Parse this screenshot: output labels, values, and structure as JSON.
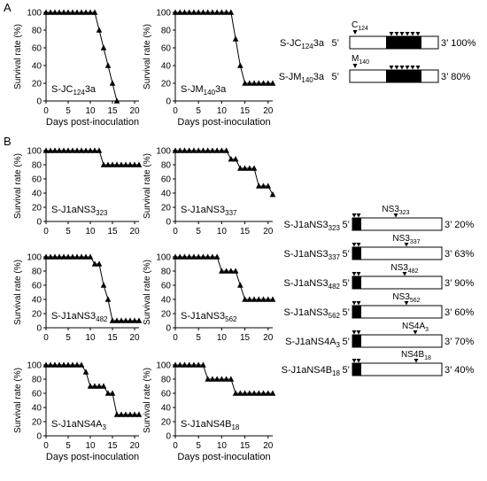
{
  "panel_labels": {
    "a": "A",
    "b": "B"
  },
  "axis": {
    "ylabel": "Survival rate (%)",
    "xlabel": "Days post-inoculation",
    "xticks": [
      "0",
      "5",
      "10",
      "15",
      "20"
    ],
    "yticks": [
      "0",
      "20",
      "40",
      "60",
      "80",
      "100"
    ]
  },
  "chart_data": [
    {
      "type": "line",
      "marker": "triangle",
      "xlim": [
        0,
        21
      ],
      "ylim": [
        0,
        100
      ],
      "label": {
        "base": "S-JC",
        "sub": "124",
        "suffix": "3a"
      },
      "x": [
        0,
        1,
        2,
        3,
        4,
        5,
        6,
        7,
        8,
        9,
        10,
        11,
        12,
        13,
        14,
        15,
        16
      ],
      "y": [
        100,
        100,
        100,
        100,
        100,
        100,
        100,
        100,
        100,
        100,
        100,
        100,
        80,
        60,
        40,
        20,
        0
      ]
    },
    {
      "type": "line",
      "marker": "triangle",
      "xlim": [
        0,
        21
      ],
      "ylim": [
        0,
        100
      ],
      "label": {
        "base": "S-JM",
        "sub": "140",
        "suffix": "3a"
      },
      "x": [
        0,
        1,
        2,
        3,
        4,
        5,
        6,
        7,
        8,
        9,
        10,
        11,
        12,
        13,
        14,
        15,
        16,
        17,
        18,
        19,
        20,
        21
      ],
      "y": [
        100,
        100,
        100,
        100,
        100,
        100,
        100,
        100,
        100,
        100,
        100,
        100,
        100,
        70,
        40,
        20,
        20,
        20,
        20,
        20,
        20,
        20
      ]
    },
    {
      "type": "line",
      "marker": "triangle",
      "xlim": [
        0,
        21
      ],
      "ylim": [
        0,
        100
      ],
      "label": {
        "base": "S-J1aNS3",
        "sub": "323",
        "suffix": ""
      },
      "x": [
        0,
        1,
        2,
        3,
        4,
        5,
        6,
        7,
        8,
        9,
        10,
        11,
        12,
        13,
        14,
        15,
        16,
        17,
        18,
        19,
        20,
        21
      ],
      "y": [
        100,
        100,
        100,
        100,
        100,
        100,
        100,
        100,
        100,
        100,
        100,
        100,
        100,
        80,
        80,
        80,
        80,
        80,
        80,
        80,
        80,
        80
      ]
    },
    {
      "type": "line",
      "marker": "triangle",
      "xlim": [
        0,
        21
      ],
      "ylim": [
        0,
        100
      ],
      "label": {
        "base": "S-J1aNS3",
        "sub": "337",
        "suffix": ""
      },
      "x": [
        0,
        1,
        2,
        3,
        4,
        5,
        6,
        7,
        8,
        9,
        10,
        11,
        12,
        13,
        14,
        15,
        16,
        17,
        18,
        19,
        20,
        21
      ],
      "y": [
        100,
        100,
        100,
        100,
        100,
        100,
        100,
        100,
        100,
        100,
        100,
        100,
        88,
        88,
        75,
        75,
        75,
        75,
        50,
        50,
        50,
        38
      ]
    },
    {
      "type": "line",
      "marker": "triangle",
      "xlim": [
        0,
        21
      ],
      "ylim": [
        0,
        100
      ],
      "label": {
        "base": "S-J1aNS3",
        "sub": "482",
        "suffix": ""
      },
      "x": [
        0,
        1,
        2,
        3,
        4,
        5,
        6,
        7,
        8,
        9,
        10,
        11,
        12,
        13,
        14,
        15,
        16,
        17,
        18,
        19,
        20,
        21
      ],
      "y": [
        100,
        100,
        100,
        100,
        100,
        100,
        100,
        100,
        100,
        100,
        100,
        90,
        90,
        60,
        40,
        10,
        10,
        10,
        10,
        10,
        10,
        10
      ]
    },
    {
      "type": "line",
      "marker": "triangle",
      "xlim": [
        0,
        21
      ],
      "ylim": [
        0,
        100
      ],
      "label": {
        "base": "S-J1aNS3",
        "sub": "562",
        "suffix": ""
      },
      "x": [
        0,
        1,
        2,
        3,
        4,
        5,
        6,
        7,
        8,
        9,
        10,
        11,
        12,
        13,
        14,
        15,
        16,
        17,
        18,
        19,
        20,
        21
      ],
      "y": [
        100,
        100,
        100,
        100,
        100,
        100,
        100,
        100,
        100,
        100,
        80,
        80,
        80,
        80,
        60,
        40,
        40,
        40,
        40,
        40,
        40,
        40
      ]
    },
    {
      "type": "line",
      "marker": "triangle",
      "xlim": [
        0,
        21
      ],
      "ylim": [
        0,
        100
      ],
      "label": {
        "base": "S-J1aNS4A",
        "sub": "3",
        "suffix": ""
      },
      "x": [
        0,
        1,
        2,
        3,
        4,
        5,
        6,
        7,
        8,
        9,
        10,
        11,
        12,
        13,
        14,
        15,
        16,
        17,
        18,
        19,
        20,
        21
      ],
      "y": [
        100,
        100,
        100,
        100,
        100,
        100,
        100,
        100,
        100,
        90,
        70,
        70,
        70,
        70,
        60,
        60,
        30,
        30,
        30,
        30,
        30,
        30
      ]
    },
    {
      "type": "line",
      "marker": "triangle",
      "xlim": [
        0,
        21
      ],
      "ylim": [
        0,
        100
      ],
      "label": {
        "base": "S-J1aNS4B",
        "sub": "18",
        "suffix": ""
      },
      "x": [
        0,
        1,
        2,
        3,
        4,
        5,
        6,
        7,
        8,
        9,
        10,
        11,
        12,
        13,
        14,
        15,
        16,
        17,
        18,
        19,
        20,
        21
      ],
      "y": [
        100,
        100,
        100,
        100,
        100,
        100,
        100,
        80,
        80,
        80,
        80,
        80,
        80,
        60,
        60,
        60,
        60,
        60,
        60,
        60,
        60,
        60
      ]
    }
  ],
  "constructs_a": [
    {
      "name": {
        "base": "S-JC",
        "sub": "124",
        "suffix": "3a"
      },
      "marker": {
        "base": "C",
        "sub": "124"
      },
      "rate": "3’ 100%"
    },
    {
      "name": {
        "base": "S-JM",
        "sub": "140",
        "suffix": "3a"
      },
      "marker": {
        "base": "M",
        "sub": "140"
      },
      "rate": "3’ 80%"
    }
  ],
  "constructs_b": [
    {
      "name": {
        "base": "S-J1aNS3",
        "sub": "323"
      },
      "marker": {
        "base": "NS3",
        "sub": "323"
      },
      "rate": "3’ 20%"
    },
    {
      "name": {
        "base": "S-J1aNS3",
        "sub": "337"
      },
      "marker": {
        "base": "NS3",
        "sub": "337"
      },
      "rate": "3’ 63%"
    },
    {
      "name": {
        "base": "S-J1aNS3",
        "sub": "482"
      },
      "marker": {
        "base": "NS3",
        "sub": "482"
      },
      "rate": "3’ 90%"
    },
    {
      "name": {
        "base": "S-J1aNS3",
        "sub": "562"
      },
      "marker": {
        "base": "NS3",
        "sub": "562"
      },
      "rate": "3’ 60%"
    },
    {
      "name": {
        "base": "S-J1aNS4A",
        "sub": "3"
      },
      "marker": {
        "base": "NS4A",
        "sub": "3"
      },
      "rate": "3’ 70%"
    },
    {
      "name": {
        "base": "S-J1aNS4B",
        "sub": "18"
      },
      "marker": {
        "base": "NS4B",
        "sub": "18"
      },
      "rate": "3’ 40%"
    }
  ],
  "five_prime": "5’"
}
